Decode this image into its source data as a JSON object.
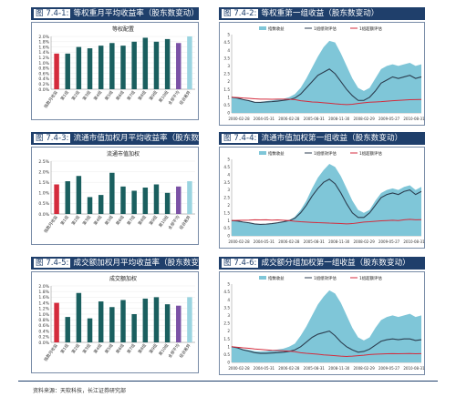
{
  "colors": {
    "title_bg": "#1f3f6b",
    "bar_main": "#1a5f5f",
    "bar_first": "#d42b3c",
    "bar_purple": "#7b52a6",
    "bar_last": "#9ad4e0",
    "area": "#7fc6d8",
    "line_top": "#2c3e50",
    "line_bench": "#d42b3c"
  },
  "left_panels": [
    {
      "tag": "图 7.4-1:",
      "title": "等权重月平均收益率（股东数变动）",
      "legend": "等权配置",
      "chart_data": {
        "type": "bar",
        "categories": [
          "指数月收益",
          "第1组",
          "第2组",
          "第3组",
          "第4组",
          "第5组",
          "第6组",
          "第7组",
          "第8组",
          "第9组",
          "第10组",
          "全部平均",
          "组合差异"
        ],
        "values": [
          1.35,
          1.35,
          1.6,
          1.55,
          1.65,
          1.75,
          1.65,
          1.8,
          1.95,
          1.8,
          1.9,
          1.75,
          2.0
        ],
        "ylim": [
          0,
          2.0
        ],
        "yticks": [
          "0.0%",
          "0.2%",
          "0.4%",
          "0.6%",
          "0.8%",
          "1.0%",
          "1.2%",
          "1.4%",
          "1.6%",
          "1.8%",
          "2.0%"
        ]
      }
    },
    {
      "tag": "图 7.4-3:",
      "title": "流通市值加权月平均收益率（股东数变动）",
      "legend": "流通市值加权",
      "chart_data": {
        "type": "bar",
        "categories": [
          "指数月收益",
          "第1组",
          "第2组",
          "第3组",
          "第4组",
          "第5组",
          "第6组",
          "第7组",
          "第8组",
          "第9组",
          "第10组",
          "全部平均",
          "组合差异"
        ],
        "values": [
          1.4,
          1.55,
          1.8,
          0.8,
          0.9,
          1.95,
          1.3,
          1.1,
          1.25,
          1.4,
          1.0,
          1.3,
          1.55
        ],
        "ylim": [
          0,
          2.5
        ],
        "yticks": [
          "0.0%",
          "0.5%",
          "1.0%",
          "1.5%",
          "2.0%",
          "2.5%"
        ]
      }
    },
    {
      "tag": "图 7.4-5:",
      "title": "成交额加权月平均收益率（股东数变动）",
      "legend": "成交额加权",
      "chart_data": {
        "type": "bar",
        "categories": [
          "指数月收益",
          "第1组",
          "第2组",
          "第3组",
          "第4组",
          "第5组",
          "第6组",
          "第7组",
          "第8组",
          "第9组",
          "第10组",
          "全部平均",
          "组合差异"
        ],
        "values": [
          1.4,
          0.9,
          1.75,
          0.85,
          1.45,
          1.25,
          1.5,
          1.0,
          1.55,
          1.6,
          1.35,
          1.3,
          1.6
        ],
        "ylim": [
          0,
          2.0
        ],
        "yticks": [
          "0.0%",
          "0.2%",
          "0.4%",
          "0.6%",
          "0.8%",
          "1.0%",
          "1.2%",
          "1.4%",
          "1.6%",
          "1.8%",
          "2.0%"
        ]
      }
    }
  ],
  "right_panels": [
    {
      "tag": "图 7.4-2:",
      "title": "等权重第一组收益（股东数变动）",
      "legend": [
        "指数收益",
        "1组绩效评估",
        "1组超额评估"
      ],
      "chart_data": {
        "type": "area",
        "xticks": [
          "2000-02-28",
          "2004-05-31",
          "2006-02-28",
          "2005-08-31",
          "2008-11-30",
          "2008-02-29",
          "2009-05-27",
          "2010-08-31"
        ],
        "ylim": [
          0,
          5
        ],
        "yticks": [
          "0",
          "0.5",
          "1",
          "1.5",
          "2",
          "2.5",
          "3",
          "3.5",
          "4",
          "4.5",
          "5"
        ],
        "series": [
          {
            "name": "指数收益",
            "values": [
              1.0,
              0.95,
              0.85,
              0.8,
              0.7,
              0.7,
              0.75,
              0.8,
              0.85,
              0.9,
              1.0,
              1.2,
              1.6,
              2.2,
              2.9,
              3.6,
              4.2,
              4.6,
              4.5,
              3.8,
              3.0,
              2.2,
              1.6,
              1.4,
              1.6,
              2.2,
              2.8,
              3.0,
              3.1,
              3.0,
              3.1,
              3.2,
              3.0,
              3.1
            ]
          },
          {
            "name": "1组绩效评估",
            "values": [
              1.0,
              0.95,
              0.85,
              0.78,
              0.68,
              0.67,
              0.7,
              0.72,
              0.75,
              0.8,
              0.85,
              0.95,
              1.2,
              1.6,
              2.0,
              2.4,
              2.6,
              2.8,
              2.5,
              2.0,
              1.5,
              1.1,
              0.8,
              0.8,
              1.0,
              1.4,
              1.9,
              2.1,
              2.3,
              2.2,
              2.3,
              2.4,
              2.2,
              2.3
            ]
          },
          {
            "name": "1组超额评估",
            "values": [
              1.0,
              0.98,
              0.95,
              0.93,
              0.9,
              0.88,
              0.88,
              0.87,
              0.88,
              0.88,
              0.87,
              0.85,
              0.78,
              0.74,
              0.7,
              0.68,
              0.65,
              0.62,
              0.58,
              0.55,
              0.53,
              0.55,
              0.6,
              0.65,
              0.68,
              0.7,
              0.72,
              0.75,
              0.78,
              0.8,
              0.82,
              0.84,
              0.85,
              0.86
            ]
          }
        ]
      }
    },
    {
      "tag": "图 7.4-4:",
      "title": "流通市值加权第一组收益（股东数变动）",
      "legend": [
        "指数收益",
        "1组绩效评估",
        "1组超额评估"
      ],
      "chart_data": {
        "type": "area",
        "xticks": [
          "2000-02-28",
          "2004-05-31",
          "2006-02-28",
          "2005-08-31",
          "2008-11-30",
          "2008-02-29",
          "2009-05-27",
          "2010-08-31"
        ],
        "ylim": [
          0,
          5
        ],
        "yticks": [
          "0",
          "0.5",
          "1",
          "1.5",
          "2",
          "2.5",
          "3",
          "3.5",
          "4",
          "4.5",
          "5"
        ],
        "series": [
          {
            "name": "指数收益",
            "values": [
              1.0,
              0.95,
              0.88,
              0.82,
              0.75,
              0.72,
              0.72,
              0.78,
              0.82,
              0.9,
              1.0,
              1.25,
              1.7,
              2.3,
              3.1,
              3.8,
              4.3,
              4.7,
              4.5,
              3.9,
              3.1,
              2.3,
              1.7,
              1.5,
              1.7,
              2.3,
              2.8,
              3.0,
              3.1,
              3.0,
              3.2,
              3.3,
              3.0,
              3.2
            ]
          },
          {
            "name": "1组绩效评估",
            "values": [
              1.0,
              0.97,
              0.9,
              0.85,
              0.78,
              0.75,
              0.76,
              0.8,
              0.85,
              0.92,
              1.0,
              1.15,
              1.5,
              2.0,
              2.6,
              3.1,
              3.5,
              3.7,
              3.4,
              2.8,
              2.1,
              1.5,
              1.2,
              1.2,
              1.5,
              2.0,
              2.5,
              2.7,
              2.8,
              2.7,
              2.9,
              3.0,
              2.7,
              2.9
            ]
          },
          {
            "name": "1组超额评估",
            "values": [
              1.0,
              1.01,
              1.02,
              1.03,
              1.05,
              1.04,
              1.05,
              1.03,
              1.04,
              1.02,
              1.0,
              0.95,
              0.92,
              0.9,
              0.88,
              0.86,
              0.85,
              0.83,
              0.82,
              0.8,
              0.78,
              0.8,
              0.85,
              0.9,
              0.92,
              0.95,
              0.98,
              1.0,
              1.02,
              1.0,
              1.05,
              1.08,
              1.05,
              1.06
            ]
          }
        ]
      }
    },
    {
      "tag": "图 7.4-6:",
      "title": "成交额分组加权第一组收益（股东数变动）",
      "legend": [
        "指数收益",
        "1组绩效评估",
        "1组超额评估"
      ],
      "chart_data": {
        "type": "area",
        "xticks": [
          "2000-02-28",
          "2004-05-31",
          "2006-02-28",
          "2005-08-31",
          "2008-11-30",
          "2008-02-29",
          "2009-05-27",
          "2010-08-31"
        ],
        "ylim": [
          0,
          5
        ],
        "yticks": [
          "0",
          "0.5",
          "1",
          "1.5",
          "2",
          "2.5",
          "3",
          "3.5",
          "4",
          "4.5",
          "5"
        ],
        "series": [
          {
            "name": "指数收益",
            "values": [
              1.0,
              0.95,
              0.85,
              0.8,
              0.72,
              0.7,
              0.72,
              0.78,
              0.82,
              0.88,
              1.0,
              1.2,
              1.7,
              2.3,
              3.0,
              3.7,
              4.2,
              4.6,
              4.4,
              3.8,
              3.0,
              2.2,
              1.6,
              1.4,
              1.6,
              2.2,
              2.7,
              2.9,
              3.0,
              2.9,
              3.0,
              3.1,
              2.9,
              3.0
            ]
          },
          {
            "name": "1组绩效评估",
            "values": [
              1.0,
              0.93,
              0.8,
              0.72,
              0.62,
              0.58,
              0.58,
              0.6,
              0.62,
              0.65,
              0.7,
              0.8,
              1.0,
              1.3,
              1.6,
              1.8,
              1.9,
              2.0,
              1.7,
              1.3,
              1.0,
              0.8,
              0.65,
              0.7,
              0.85,
              1.1,
              1.35,
              1.45,
              1.5,
              1.45,
              1.5,
              1.5,
              1.4,
              1.45
            ]
          },
          {
            "name": "1组超额评估",
            "values": [
              1.0,
              0.97,
              0.93,
              0.9,
              0.86,
              0.83,
              0.8,
              0.77,
              0.76,
              0.74,
              0.72,
              0.68,
              0.62,
              0.58,
              0.55,
              0.52,
              0.48,
              0.46,
              0.43,
              0.4,
              0.38,
              0.4,
              0.43,
              0.46,
              0.5,
              0.52,
              0.54,
              0.55,
              0.56,
              0.55,
              0.56,
              0.57,
              0.55,
              0.56
            ]
          }
        ]
      }
    }
  ],
  "footer": {
    "source": "资料来源：天软科技，长江证券研究部"
  }
}
